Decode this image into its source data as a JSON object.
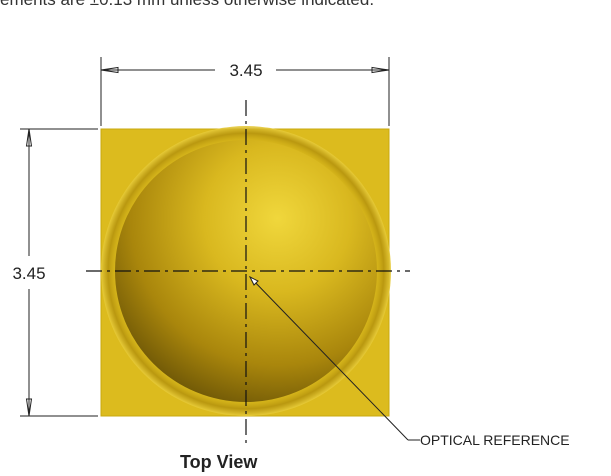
{
  "note": {
    "text": "ements are ±0.13 mm unless otherwise indicated."
  },
  "dimensions": {
    "width_label": "3.45",
    "height_label": "3.45"
  },
  "callout": {
    "label": "OPTICAL REFERENCE"
  },
  "caption": {
    "text": "Top View"
  },
  "colors": {
    "package": "#dcbb1e",
    "package_edge": "#c9a80f",
    "lens_highlight": "#efd53a",
    "lens_mid": "#c8a414",
    "lens_shadow": "#5e4a05"
  }
}
